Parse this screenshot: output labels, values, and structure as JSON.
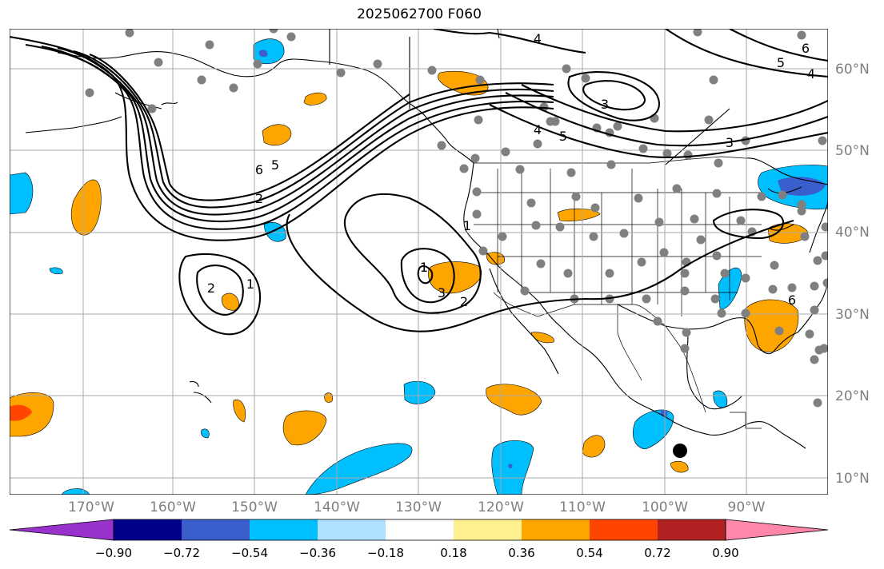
{
  "title": "2025062700 F060",
  "lat_labels": [
    "60°N",
    "50°N",
    "40°N",
    "30°N",
    "20°N",
    "10°N"
  ],
  "lon_labels": [
    "170°W",
    "160°W",
    "150°W",
    "140°W",
    "130°W",
    "120°W",
    "110°W",
    "100°W",
    "90°W"
  ],
  "colorbar": {
    "colors": [
      "#9932cc",
      "#00008b",
      "#3a5fcd",
      "#00bfff",
      "#b0e2ff",
      "#ffffff",
      "#fff08f",
      "#ffa500",
      "#ff4500",
      "#b22222",
      "#ff88aa"
    ],
    "tick_labels": [
      "−0.90",
      "−0.72",
      "−0.54",
      "−0.36",
      "−0.18",
      "0.18",
      "0.36",
      "0.54",
      "0.72",
      "0.90"
    ]
  },
  "contour_labels": [
    "1",
    "2",
    "3",
    "4",
    "5",
    "6",
    "1",
    "2",
    "3",
    "4",
    "5",
    "1",
    "2",
    "3",
    "4",
    "5",
    "6",
    "4"
  ]
}
